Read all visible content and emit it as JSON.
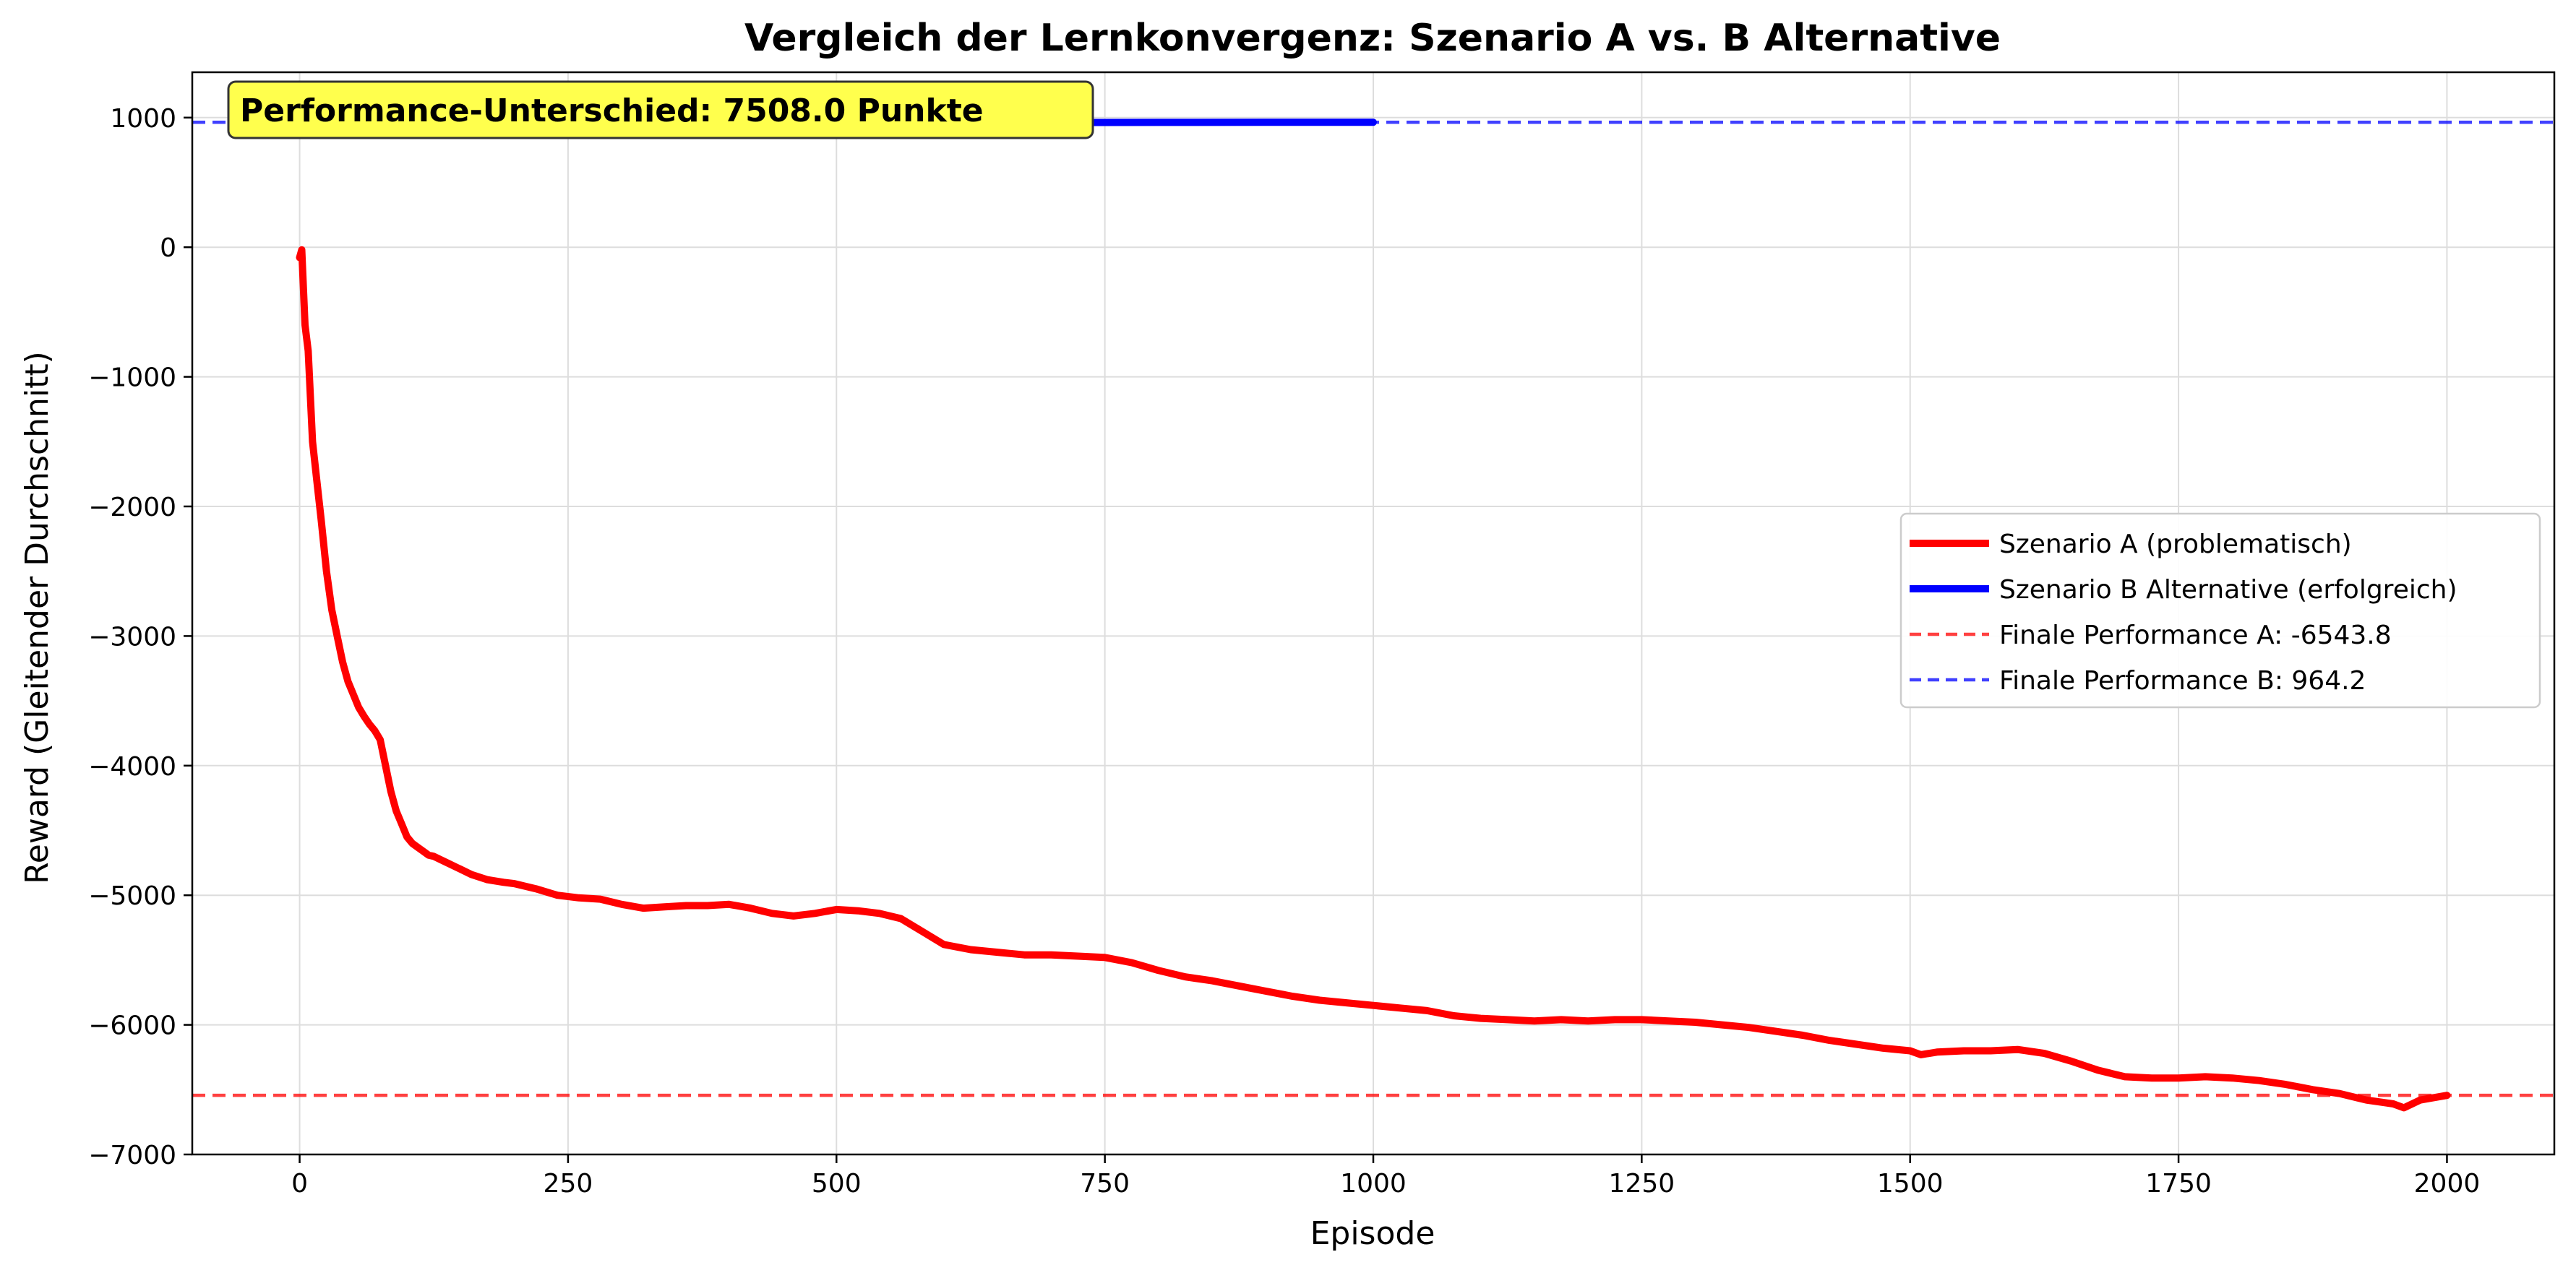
{
  "chart_data": {
    "type": "line",
    "title": "Vergleich der Lernkonvergenz: Szenario A vs. B Alternative",
    "xlabel": "Episode",
    "ylabel": "Reward (Gleitender Durchschnitt)",
    "xlim": [
      -100,
      2100
    ],
    "ylim": [
      -7000,
      1350
    ],
    "xticks": [
      0,
      250,
      500,
      750,
      1000,
      1250,
      1500,
      1750,
      2000
    ],
    "xtick_labels": [
      "0",
      "250",
      "500",
      "750",
      "1000",
      "1250",
      "1500",
      "1750",
      "2000"
    ],
    "yticks": [
      -7000,
      -6000,
      -5000,
      -4000,
      -3000,
      -2000,
      -1000,
      0,
      1000
    ],
    "ytick_labels": [
      "−7000",
      "−6000",
      "−5000",
      "−4000",
      "−3000",
      "−2000",
      "−1000",
      "0",
      "1000"
    ],
    "grid": true,
    "legend_position": "center-right",
    "series": [
      {
        "name": "Szenario A (problematisch)",
        "color": "#ff0000",
        "style": "solid",
        "x": [
          0,
          2,
          5,
          8,
          12,
          16,
          20,
          25,
          30,
          35,
          40,
          45,
          50,
          55,
          60,
          65,
          70,
          75,
          80,
          85,
          90,
          95,
          100,
          105,
          110,
          115,
          120,
          125,
          130,
          140,
          150,
          160,
          175,
          190,
          200,
          220,
          240,
          260,
          280,
          300,
          320,
          340,
          360,
          380,
          400,
          420,
          440,
          460,
          480,
          500,
          520,
          540,
          560,
          580,
          600,
          625,
          650,
          675,
          700,
          725,
          750,
          775,
          800,
          825,
          850,
          875,
          900,
          925,
          950,
          975,
          1000,
          1025,
          1050,
          1075,
          1100,
          1125,
          1150,
          1175,
          1200,
          1225,
          1250,
          1275,
          1300,
          1325,
          1350,
          1375,
          1400,
          1425,
          1450,
          1475,
          1500,
          1510,
          1525,
          1550,
          1575,
          1600,
          1625,
          1650,
          1675,
          1700,
          1725,
          1750,
          1775,
          1800,
          1825,
          1850,
          1875,
          1900,
          1925,
          1950,
          1960,
          1975,
          2000
        ],
        "y": [
          -80,
          -20,
          -600,
          -800,
          -1500,
          -1800,
          -2100,
          -2500,
          -2800,
          -3000,
          -3200,
          -3350,
          -3450,
          -3550,
          -3620,
          -3680,
          -3730,
          -3800,
          -4000,
          -4200,
          -4350,
          -4450,
          -4550,
          -4600,
          -4630,
          -4660,
          -4690,
          -4700,
          -4720,
          -4760,
          -4800,
          -4840,
          -4880,
          -4900,
          -4910,
          -4950,
          -5000,
          -5020,
          -5030,
          -5070,
          -5100,
          -5090,
          -5080,
          -5080,
          -5070,
          -5100,
          -5140,
          -5160,
          -5140,
          -5110,
          -5120,
          -5140,
          -5180,
          -5280,
          -5380,
          -5420,
          -5440,
          -5460,
          -5460,
          -5470,
          -5480,
          -5520,
          -5580,
          -5630,
          -5660,
          -5700,
          -5740,
          -5780,
          -5810,
          -5830,
          -5850,
          -5870,
          -5890,
          -5930,
          -5950,
          -5960,
          -5970,
          -5960,
          -5970,
          -5960,
          -5960,
          -5970,
          -5980,
          -6000,
          -6020,
          -6050,
          -6080,
          -6120,
          -6150,
          -6180,
          -6200,
          -6230,
          -6210,
          -6200,
          -6200,
          -6190,
          -6220,
          -6280,
          -6350,
          -6400,
          -6410,
          -6410,
          -6400,
          -6410,
          -6430,
          -6460,
          -6500,
          -6530,
          -6580,
          -6610,
          -6640,
          -6580,
          -6543.8
        ]
      },
      {
        "name": "Szenario B Alternative (erfolgreich)",
        "color": "#0000ff",
        "style": "solid",
        "x": [
          0,
          100,
          200,
          300,
          400,
          500,
          600,
          700,
          800,
          900,
          1000
        ],
        "y": [
          935,
          945,
          950,
          955,
          958,
          960,
          960,
          962,
          963,
          964,
          964.2
        ]
      }
    ],
    "reference_lines": [
      {
        "name": "Finale Performance A: -6543.8",
        "value": -6543.8,
        "color": "#ff0000",
        "style": "dashed"
      },
      {
        "name": "Finale Performance B: 964.2",
        "value": 964.2,
        "color": "#0000ff",
        "style": "dashed"
      }
    ],
    "annotation": {
      "text": "Performance-Unterschied: 7508.0 Punkte",
      "background": "#ffff4d"
    }
  }
}
